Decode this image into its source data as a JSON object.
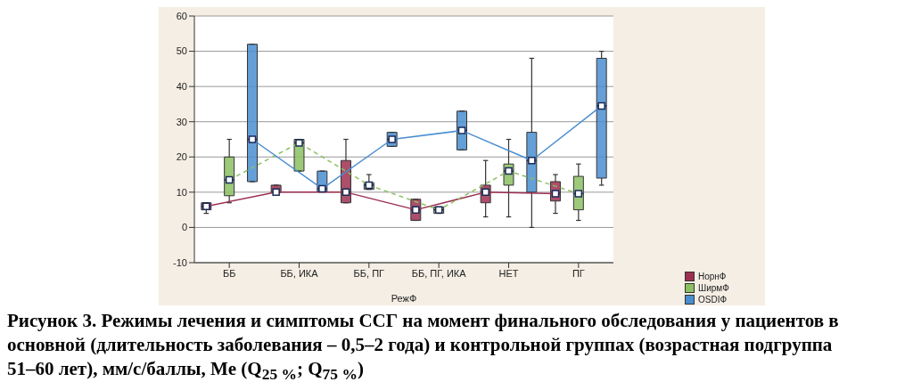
{
  "chart_data": {
    "type": "box",
    "categories": [
      "ББ",
      "ББ, ИКА",
      "ББ, ПГ",
      "ББ, ПГ, ИКА",
      "НЕТ",
      "ПГ"
    ],
    "xlabel": "РежФ",
    "ylim": [
      -10,
      60
    ],
    "yticks": [
      -10,
      0,
      10,
      20,
      30,
      40,
      50,
      60
    ],
    "grid": "y",
    "legend": "bottom right",
    "marker": "square",
    "series": [
      {
        "name": "НорнФ",
        "color": "#9c3050",
        "boxes": [
          {
            "low": 4,
            "q1": 5,
            "median": 6,
            "q3": 7,
            "high": 7
          },
          {
            "low": 10,
            "q1": 10,
            "median": 10,
            "q3": 12,
            "high": 12
          },
          {
            "low": 7,
            "q1": 7,
            "median": 10,
            "q3": 19,
            "high": 25
          },
          {
            "low": 2,
            "q1": 2,
            "median": 5,
            "q3": 8,
            "high": 8
          },
          {
            "low": 3,
            "q1": 7,
            "median": 10,
            "q3": 12,
            "high": 19
          },
          {
            "low": 4,
            "q1": 7.5,
            "median": 9.6,
            "q3": 13,
            "high": 15
          }
        ]
      },
      {
        "name": "ШирмФ",
        "color": "#8cc063",
        "boxes": [
          {
            "low": 7,
            "q1": 9,
            "median": 13.5,
            "q3": 20,
            "high": 25
          },
          {
            "low": 16,
            "q1": 16,
            "median": 24,
            "q3": 25,
            "high": 25
          },
          {
            "low": 10.8,
            "q1": 10.8,
            "median": 12,
            "q3": 12.7,
            "high": 15
          },
          {
            "low": 4,
            "q1": 4,
            "median": 5,
            "q3": 5.8,
            "high": 5.8
          },
          {
            "low": 3,
            "q1": 12,
            "median": 16,
            "q3": 18,
            "high": 25
          },
          {
            "low": 2,
            "q1": 5,
            "median": 9.6,
            "q3": 14.5,
            "high": 18
          }
        ]
      },
      {
        "name": "OSDIФ",
        "color": "#4a8ed0",
        "boxes": [
          {
            "low": 13,
            "q1": 13,
            "median": 25,
            "q3": 52,
            "high": 52
          },
          {
            "low": 10.2,
            "q1": 10.2,
            "median": 11,
            "q3": 16,
            "high": 16
          },
          {
            "low": 23,
            "q1": 23,
            "median": 25,
            "q3": 27,
            "high": 27
          },
          {
            "low": 22,
            "q1": 22,
            "median": 27.5,
            "q3": 33,
            "high": 33
          },
          {
            "low": 0,
            "q1": 10,
            "median": 19,
            "q3": 27,
            "high": 48
          },
          {
            "low": 12,
            "q1": 14,
            "median": 34.5,
            "q3": 48,
            "high": 50
          }
        ]
      },
      {
        "type": "line",
        "color": "#9c3050",
        "line_style": "solid",
        "values": [
          6,
          10,
          10,
          5,
          10,
          9.6
        ]
      },
      {
        "type": "line",
        "color": "#8cc063",
        "line_style": "dashed",
        "values": [
          13.5,
          24,
          12,
          5,
          16,
          9.6
        ]
      },
      {
        "type": "line",
        "color": "#4a8ed0",
        "line_style": "solid",
        "values": [
          25,
          11,
          25,
          27.5,
          19,
          34.5
        ]
      }
    ],
    "annotations": [
      "Рисунок 3. Режимы лечения и симптомы ССГ на момент финального обследования у пациентов в основной (длительность заболевания – 0,5–2 года) и контрольной группах (возрастная подгруппа 51–60 лет), мм/с/баллы, Me (Q$_{25 %}$; Q$_{75 %}$)"
    ]
  }
}
